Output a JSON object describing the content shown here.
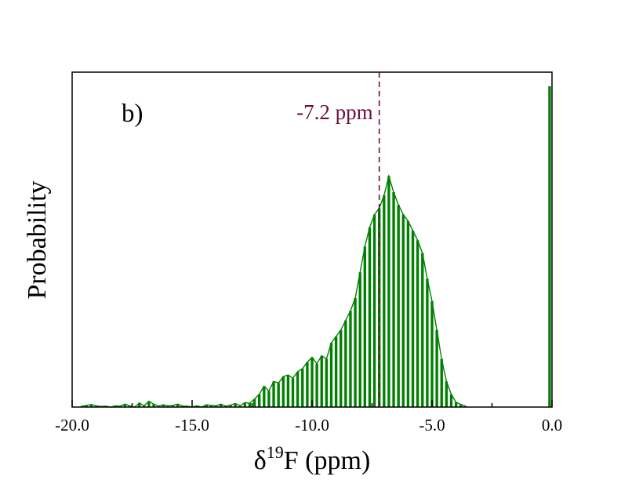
{
  "chart_data": {
    "type": "bar",
    "panel_label": "b)",
    "xlabel": {
      "symbol": "δ",
      "superscript": "19",
      "rest": "F (ppm)"
    },
    "ylabel": "Probability",
    "xlim": [
      -20.0,
      0.0
    ],
    "ylim": [
      0,
      1.0
    ],
    "x_tick_labels": [
      "-20.0",
      "-15.0",
      "-10.0",
      "-5.0",
      "0.0"
    ],
    "x_major_ticks": [
      -20.0,
      -15.0,
      -10.0,
      -5.0,
      0.0
    ],
    "x_minor_ticks": [
      -17.5,
      -12.5,
      -7.5,
      -2.5
    ],
    "grid": false,
    "bar_color": "#008000",
    "annotation": {
      "text": "-7.2 ppm",
      "x": -7.2,
      "color": "#6b0f3f"
    },
    "series": [
      {
        "x": [
          -19.6,
          -19.4,
          -19.2,
          -19.0,
          -18.8,
          -18.6,
          -18.4,
          -18.2,
          -18.0,
          -17.8,
          -17.6,
          -17.4,
          -17.2,
          -17.0,
          -16.8,
          -16.6,
          -16.4,
          -16.2,
          -16.0,
          -15.8,
          -15.6,
          -15.4,
          -15.2,
          -15.0,
          -14.8,
          -14.6,
          -14.4,
          -14.2,
          -14.0,
          -13.8,
          -13.6,
          -13.4,
          -13.2,
          -13.0,
          -12.8,
          -12.6,
          -12.4,
          -12.2,
          -12.0,
          -11.8,
          -11.6,
          -11.4,
          -11.2,
          -11.0,
          -10.8,
          -10.6,
          -10.4,
          -10.2,
          -10.0,
          -9.8,
          -9.6,
          -9.4,
          -9.2,
          -9.0,
          -8.8,
          -8.6,
          -8.4,
          -8.2,
          -8.0,
          -7.8,
          -7.6,
          -7.4,
          -7.2,
          -7.0,
          -6.8,
          -6.6,
          -6.4,
          -6.2,
          -6.0,
          -5.8,
          -5.6,
          -5.4,
          -5.2,
          -5.0,
          -4.8,
          -4.6,
          -4.4,
          -4.2,
          -4.0,
          -3.8,
          -3.6,
          -0.1
        ],
        "values": [
          0.003,
          0.005,
          0.008,
          0.004,
          0.002,
          0.003,
          0.0,
          0.004,
          0.003,
          0.009,
          0.004,
          0.0,
          0.013,
          0.004,
          0.018,
          0.009,
          0.003,
          0.007,
          0.004,
          0.005,
          0.009,
          0.003,
          0.003,
          0.0,
          0.004,
          0.0,
          0.007,
          0.005,
          0.004,
          0.009,
          0.003,
          0.006,
          0.011,
          0.004,
          0.014,
          0.012,
          0.025,
          0.04,
          0.065,
          0.05,
          0.08,
          0.075,
          0.095,
          0.1,
          0.09,
          0.11,
          0.12,
          0.14,
          0.155,
          0.135,
          0.16,
          0.15,
          0.2,
          0.22,
          0.24,
          0.27,
          0.3,
          0.34,
          0.42,
          0.5,
          0.56,
          0.6,
          0.62,
          0.66,
          0.72,
          0.67,
          0.63,
          0.6,
          0.58,
          0.55,
          0.52,
          0.48,
          0.4,
          0.33,
          0.24,
          0.15,
          0.08,
          0.04,
          0.015,
          0.008,
          0.003,
          1.0
        ]
      }
    ]
  }
}
